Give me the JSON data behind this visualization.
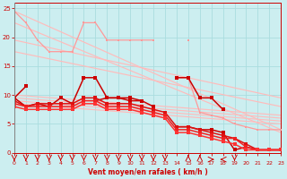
{
  "bg_color": "#cceef0",
  "grid_color": "#aadddf",
  "xlabel": "Vent moyen/en rafales ( km/h )",
  "xlim": [
    0,
    23
  ],
  "ylim": [
    0,
    26
  ],
  "yticks": [
    0,
    5,
    10,
    15,
    20,
    25
  ],
  "xticks": [
    0,
    1,
    2,
    3,
    4,
    5,
    6,
    7,
    8,
    9,
    10,
    11,
    12,
    13,
    14,
    15,
    16,
    17,
    18,
    19,
    20,
    21,
    22,
    23
  ],
  "trend_lines": [
    [
      0,
      23,
      24.5,
      4.0
    ],
    [
      0,
      23,
      22.5,
      3.5
    ],
    [
      0,
      23,
      19.5,
      9.5
    ],
    [
      0,
      23,
      17.5,
      8.0
    ],
    [
      0,
      23,
      10.0,
      6.5
    ],
    [
      0,
      23,
      9.5,
      6.0
    ],
    [
      0,
      23,
      9.0,
      5.5
    ],
    [
      0,
      23,
      8.5,
      5.0
    ]
  ],
  "pink_line1_x": [
    0,
    1,
    2,
    3,
    4,
    5,
    6,
    7,
    8,
    9,
    10,
    11,
    12,
    13,
    14,
    15,
    16,
    17,
    18,
    19,
    20,
    21,
    22,
    23
  ],
  "pink_line1_y": [
    24.5,
    22.5,
    null,
    null,
    null,
    null,
    null,
    null,
    null,
    null,
    null,
    null,
    null,
    null,
    null,
    null,
    null,
    null,
    null,
    null,
    null,
    null,
    null,
    null
  ],
  "pink_line2_x": [
    1,
    2,
    3,
    4,
    5,
    6,
    7,
    8,
    9,
    10,
    11,
    12,
    13,
    14,
    15,
    16,
    17,
    18,
    19,
    20,
    21,
    22,
    23
  ],
  "pink_line2_y": [
    22.5,
    19.5,
    17.5,
    17.5,
    17.5,
    22.5,
    22.5,
    19.5,
    19.5,
    19.5,
    19.5,
    19.5,
    null,
    null,
    19.5,
    null,
    null,
    null,
    null,
    null,
    null,
    null,
    null
  ],
  "pink_line3_x": [
    2,
    3,
    4,
    5,
    6,
    7,
    8,
    9,
    10,
    11,
    12,
    13,
    14,
    15,
    16,
    17,
    18,
    19,
    20,
    21,
    22,
    23
  ],
  "pink_line3_y": [
    19.5,
    null,
    null,
    null,
    null,
    null,
    null,
    null,
    null,
    null,
    null,
    null,
    13.0,
    13.0,
    7.0,
    6.5,
    6.0,
    5.0,
    4.5,
    4.0,
    4.0,
    4.0
  ],
  "dark_line1_x": [
    0,
    1,
    2,
    3,
    4,
    5,
    6,
    7,
    8,
    9,
    10,
    11,
    12,
    14,
    15,
    16,
    17,
    18,
    19,
    20,
    21,
    22,
    23
  ],
  "dark_line1_y": [
    9.5,
    11.5,
    null,
    null,
    9.5,
    null,
    null,
    9.0,
    9.5,
    9.5,
    9.0,
    9.0,
    null,
    13.0,
    13.0,
    9.5,
    9.5,
    7.5,
    null,
    null,
    null,
    null,
    null
  ],
  "dark_line2_x": [
    0,
    1,
    2,
    3,
    4,
    5,
    6,
    7,
    8,
    9,
    10,
    11,
    12,
    13,
    14,
    15,
    16,
    17,
    18,
    19,
    20,
    21,
    22,
    23
  ],
  "dark_line2_y": [
    9.5,
    8.0,
    8.5,
    8.0,
    9.5,
    8.5,
    13.0,
    13.0,
    9.5,
    9.5,
    9.5,
    9.0,
    8.0,
    null,
    4.5,
    4.5,
    4.0,
    4.0,
    3.5,
    0.5,
    1.0,
    0.5,
    0.5,
    0.5
  ],
  "dark_line3_x": [
    0,
    1,
    2,
    3,
    4,
    5,
    6,
    7,
    8,
    9,
    10,
    11,
    12,
    13,
    14,
    15,
    16,
    17,
    18,
    19,
    20,
    21,
    22,
    23
  ],
  "dark_line3_y": [
    9.0,
    8.0,
    8.5,
    8.5,
    8.5,
    8.5,
    9.5,
    9.5,
    8.5,
    8.5,
    8.5,
    8.0,
    7.5,
    7.0,
    4.5,
    4.5,
    4.0,
    3.5,
    3.0,
    2.5,
    1.5,
    0.5,
    0.5,
    0.5
  ],
  "dark_line4_x": [
    0,
    1,
    2,
    3,
    4,
    5,
    6,
    7,
    8,
    9,
    10,
    11,
    12,
    13,
    14,
    15,
    16,
    17,
    18,
    19,
    20,
    21,
    22,
    23
  ],
  "dark_line4_y": [
    8.5,
    8.0,
    8.0,
    8.0,
    8.0,
    8.0,
    9.0,
    9.0,
    8.0,
    8.0,
    8.0,
    7.5,
    7.0,
    6.5,
    4.0,
    4.0,
    3.5,
    3.0,
    2.5,
    2.5,
    1.0,
    0.5,
    0.5,
    0.5
  ],
  "dark_line5_x": [
    0,
    1,
    2,
    3,
    4,
    5,
    6,
    7,
    8,
    9,
    10,
    11,
    12,
    13,
    14,
    15,
    16,
    17,
    18,
    19,
    20,
    21,
    22,
    23
  ],
  "dark_line5_y": [
    8.0,
    7.5,
    7.5,
    7.5,
    7.5,
    7.5,
    8.5,
    8.5,
    7.5,
    7.5,
    7.5,
    7.0,
    6.5,
    6.0,
    3.5,
    3.5,
    3.0,
    2.5,
    2.0,
    1.5,
    0.5,
    0.5,
    0.5,
    0.5
  ],
  "arrows_down": [
    0,
    1,
    2,
    3,
    4,
    5,
    6,
    7,
    8,
    9,
    10,
    11,
    12,
    13,
    19
  ],
  "arrows_up": [
    15,
    16
  ],
  "arrows_right": [
    17
  ],
  "arrows_left": [
    18
  ]
}
